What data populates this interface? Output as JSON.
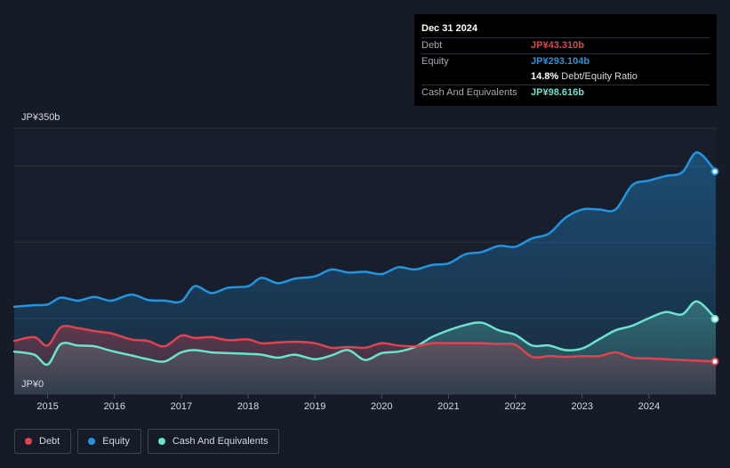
{
  "colors": {
    "debt": "#e0434f",
    "equity": "#2394df",
    "cash": "#6be3cc",
    "grid": "#2b313d",
    "axis_text": "#d8dbe0"
  },
  "tooltip": {
    "date": "Dec 31 2024",
    "debt_label": "Debt",
    "debt_value": "JP¥43.310b",
    "equity_label": "Equity",
    "equity_value": "JP¥293.104b",
    "ratio_value": "14.8%",
    "ratio_label": "Debt/Equity Ratio",
    "cash_label": "Cash And Equivalents",
    "cash_value": "JP¥98.616b"
  },
  "legend": {
    "debt": "Debt",
    "equity": "Equity",
    "cash": "Cash And Equivalents"
  },
  "chart_data": {
    "type": "area",
    "title": "",
    "xlabel": "",
    "ylabel": "",
    "ylim": [
      0,
      350
    ],
    "xlim": [
      2014.5,
      2025.0
    ],
    "y_tick_labels": [
      "JP¥350b",
      "JP¥0"
    ],
    "x_ticks": [
      2015,
      2016,
      2017,
      2018,
      2019,
      2020,
      2021,
      2022,
      2023,
      2024
    ],
    "x_tick_labels": [
      "2015",
      "2016",
      "2017",
      "2018",
      "2019",
      "2020",
      "2021",
      "2022",
      "2023",
      "2024"
    ],
    "grid_values": [
      0,
      100,
      200,
      300,
      350
    ],
    "series": [
      {
        "name": "Equity",
        "key": "equity",
        "x": [
          2014.5,
          2014.8,
          2015.0,
          2015.2,
          2015.45,
          2015.7,
          2015.95,
          2016.25,
          2016.5,
          2016.75,
          2017.0,
          2017.2,
          2017.45,
          2017.7,
          2018.0,
          2018.2,
          2018.45,
          2018.7,
          2019.0,
          2019.25,
          2019.5,
          2019.75,
          2020.0,
          2020.25,
          2020.5,
          2020.75,
          2021.0,
          2021.25,
          2021.5,
          2021.75,
          2022.0,
          2022.25,
          2022.5,
          2022.75,
          2023.0,
          2023.25,
          2023.5,
          2023.75,
          2024.0,
          2024.25,
          2024.5,
          2024.72,
          2025.0
        ],
        "values": [
          115,
          117,
          118,
          127,
          123,
          128,
          123,
          131,
          124,
          123,
          122,
          142,
          133,
          140,
          142,
          153,
          146,
          152,
          155,
          164,
          160,
          161,
          158,
          167,
          164,
          170,
          172,
          184,
          187,
          195,
          194,
          205,
          211,
          232,
          243,
          243,
          243,
          275,
          281,
          287,
          292,
          318,
          293
        ]
      },
      {
        "name": "Cash And Equivalents",
        "key": "cash",
        "x": [
          2014.5,
          2014.8,
          2015.0,
          2015.2,
          2015.45,
          2015.7,
          2015.95,
          2016.25,
          2016.5,
          2016.75,
          2017.0,
          2017.2,
          2017.45,
          2017.7,
          2018.0,
          2018.2,
          2018.45,
          2018.7,
          2019.0,
          2019.25,
          2019.5,
          2019.75,
          2020.0,
          2020.25,
          2020.5,
          2020.75,
          2021.0,
          2021.25,
          2021.5,
          2021.75,
          2022.0,
          2022.25,
          2022.5,
          2022.75,
          2023.0,
          2023.25,
          2023.5,
          2023.75,
          2024.0,
          2024.25,
          2024.5,
          2024.72,
          2025.0
        ],
        "values": [
          56,
          52,
          39,
          66,
          64,
          63,
          57,
          51,
          46,
          43,
          55,
          58,
          55,
          54,
          53,
          52,
          48,
          52,
          46,
          51,
          58,
          45,
          54,
          56,
          62,
          75,
          84,
          91,
          94,
          84,
          78,
          64,
          64,
          58,
          60,
          72,
          84,
          90,
          100,
          108,
          105,
          122,
          99
        ]
      },
      {
        "name": "Debt",
        "key": "debt",
        "x": [
          2014.5,
          2014.8,
          2015.0,
          2015.2,
          2015.45,
          2015.7,
          2015.95,
          2016.25,
          2016.5,
          2016.75,
          2017.0,
          2017.2,
          2017.45,
          2017.7,
          2018.0,
          2018.2,
          2018.45,
          2018.7,
          2019.0,
          2019.25,
          2019.5,
          2019.75,
          2020.0,
          2020.25,
          2020.5,
          2020.75,
          2021.0,
          2021.25,
          2021.5,
          2021.75,
          2022.0,
          2022.25,
          2022.5,
          2022.75,
          2023.0,
          2023.25,
          2023.5,
          2023.75,
          2024.0,
          2024.25,
          2024.5,
          2024.72,
          2025.0
        ],
        "values": [
          70,
          75,
          64,
          88,
          87,
          83,
          80,
          72,
          70,
          63,
          77,
          74,
          75,
          71,
          72,
          67,
          68,
          69,
          67,
          61,
          62,
          61,
          67,
          64,
          63,
          67,
          67,
          67,
          67,
          66,
          65,
          49,
          50,
          49,
          50,
          50,
          55,
          48,
          47,
          46,
          45,
          44,
          43
        ]
      }
    ]
  }
}
